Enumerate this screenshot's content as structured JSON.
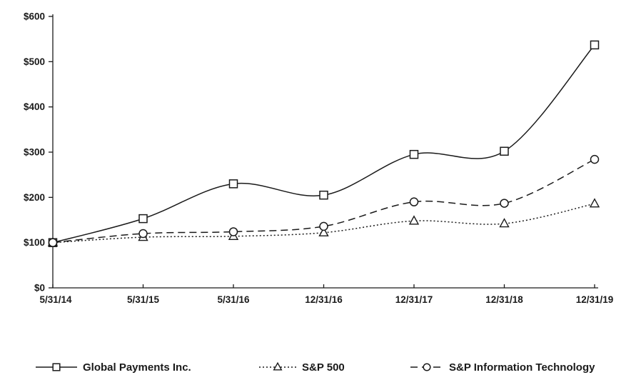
{
  "page": {
    "background_color": "#ffffff",
    "line_color": "#1a1a1a"
  },
  "chart_data": {
    "type": "line",
    "title": "",
    "subtitle": "",
    "xlabel": "",
    "ylabel": "",
    "categories": [
      "5/31/14",
      "5/31/15",
      "5/31/16",
      "12/31/16",
      "12/31/17",
      "12/31/18",
      "12/31/19"
    ],
    "series": [
      {
        "name": "Global Payments Inc.",
        "marker": "square",
        "line_style": "solid",
        "values": [
          100,
          153,
          230,
          205,
          295,
          302,
          537
        ]
      },
      {
        "name": "S&P 500",
        "marker": "triangle",
        "line_style": "dotted",
        "values": [
          100,
          112,
          114,
          122,
          148,
          142,
          186
        ]
      },
      {
        "name": "S&P Information Technology",
        "marker": "circle",
        "line_style": "dashed",
        "values": [
          100,
          120,
          124,
          136,
          190,
          187,
          284
        ]
      }
    ],
    "ylim": [
      0,
      600
    ],
    "y_tick_step": 100,
    "y_tick_labels": [
      "$0",
      "$100",
      "$200",
      "$300",
      "$400",
      "$500",
      "$600"
    ],
    "grid": false,
    "legend_position": "bottom",
    "color": "#1a1a1a"
  }
}
